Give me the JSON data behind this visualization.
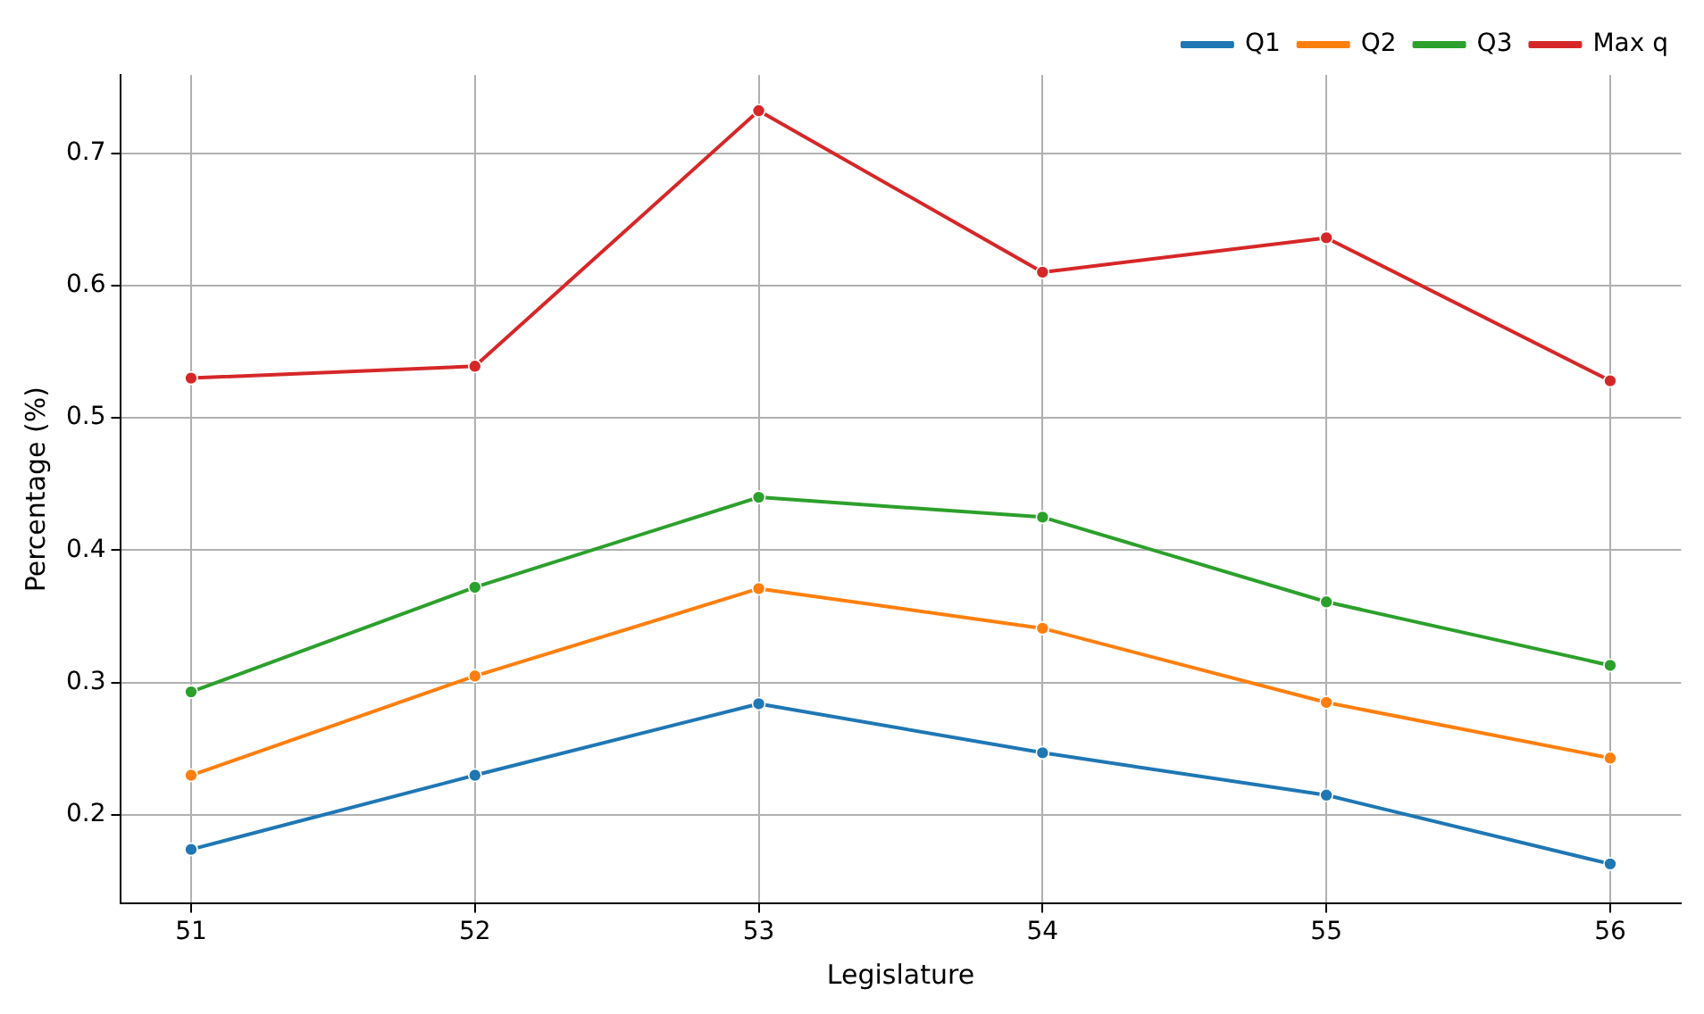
{
  "chart_data": {
    "type": "line",
    "xlabel": "Legislature",
    "ylabel": "Percentage (%)",
    "x": [
      51,
      52,
      53,
      54,
      55,
      56
    ],
    "series": [
      {
        "name": "Q1",
        "color": "#1f77b4",
        "values": [
          0.174,
          0.23,
          0.284,
          0.247,
          0.215,
          0.163
        ]
      },
      {
        "name": "Q2",
        "color": "#ff7f0e",
        "values": [
          0.23,
          0.305,
          0.371,
          0.341,
          0.285,
          0.243
        ]
      },
      {
        "name": "Q3",
        "color": "#2ca02c",
        "values": [
          0.293,
          0.372,
          0.44,
          0.425,
          0.361,
          0.313
        ]
      },
      {
        "name": "Max q",
        "color": "#d62728",
        "values": [
          0.53,
          0.539,
          0.732,
          0.61,
          0.636,
          0.528
        ]
      }
    ],
    "xlim": [
      50.75,
      56.25
    ],
    "xticks": [
      51,
      52,
      53,
      54,
      55,
      56
    ],
    "ylim": [
      0.133,
      0.759
    ],
    "yticks": [
      0.2,
      0.3,
      0.4,
      0.5,
      0.6,
      0.7
    ],
    "grid": true,
    "legend": "top right",
    "marker": "circle",
    "line_style": "solid"
  }
}
